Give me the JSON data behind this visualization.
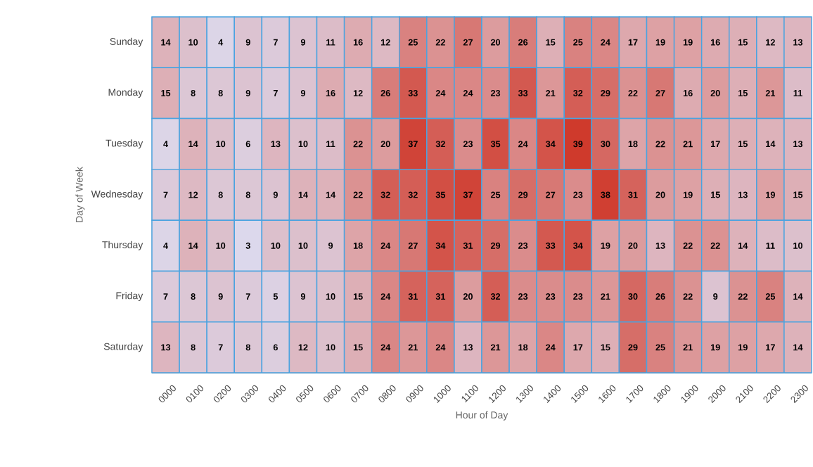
{
  "chart_data": {
    "type": "heatmap",
    "xlabel": "Hour of Day",
    "ylabel": "Day of Week",
    "data_labels": true,
    "categories": [
      "0000",
      "0100",
      "0200",
      "0300",
      "0400",
      "0500",
      "0600",
      "0700",
      "0800",
      "0900",
      "1000",
      "1100",
      "1200",
      "1300",
      "1400",
      "1500",
      "1600",
      "1700",
      "1800",
      "1900",
      "2000",
      "2100",
      "2200",
      "2300"
    ],
    "y_categories": [
      "Sunday",
      "Monday",
      "Tuesday",
      "Wednesday",
      "Thursday",
      "Friday",
      "Saturday"
    ],
    "cells": [
      [
        14,
        10,
        4,
        9,
        7,
        9,
        11,
        16,
        12,
        25,
        22,
        27,
        20,
        26,
        15,
        25,
        24,
        17,
        19,
        19,
        16,
        15,
        12,
        13
      ],
      [
        15,
        8,
        8,
        9,
        7,
        9,
        16,
        12,
        26,
        33,
        24,
        24,
        23,
        33,
        21,
        32,
        29,
        22,
        27,
        16,
        20,
        15,
        21,
        11
      ],
      [
        4,
        14,
        10,
        6,
        13,
        10,
        11,
        22,
        20,
        37,
        32,
        23,
        35,
        24,
        34,
        39,
        30,
        18,
        22,
        21,
        17,
        15,
        14,
        13
      ],
      [
        7,
        12,
        8,
        8,
        9,
        14,
        14,
        22,
        32,
        32,
        35,
        37,
        25,
        29,
        27,
        23,
        38,
        31,
        20,
        19,
        15,
        13,
        19,
        15
      ],
      [
        4,
        14,
        10,
        3,
        10,
        10,
        9,
        18,
        24,
        27,
        34,
        31,
        29,
        23,
        33,
        34,
        19,
        20,
        13,
        22,
        22,
        14,
        11,
        10
      ],
      [
        7,
        8,
        9,
        7,
        5,
        9,
        10,
        15,
        24,
        31,
        31,
        20,
        32,
        23,
        23,
        23,
        21,
        30,
        26,
        22,
        9,
        22,
        25,
        14
      ],
      [
        13,
        8,
        7,
        8,
        6,
        12,
        10,
        15,
        24,
        21,
        24,
        13,
        21,
        18,
        24,
        17,
        15,
        29,
        25,
        21,
        19,
        19,
        17,
        14
      ]
    ]
  }
}
